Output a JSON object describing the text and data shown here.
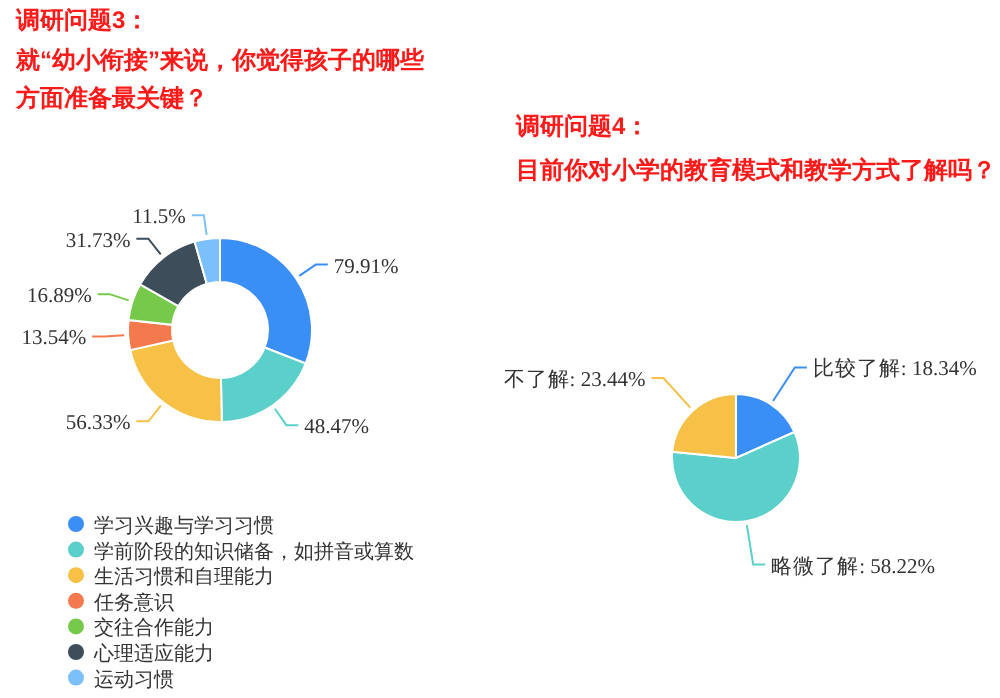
{
  "chart_data": [
    {
      "type": "donut",
      "title": "调研问题3：",
      "subtitle": "就“幼小衔接”来说，你觉得孩子的哪些方面准备最关键？",
      "categories": [
        "学习兴趣与学习习惯",
        "学前阶段的知识储备，如拼音或算数",
        "生活习惯和自理能力",
        "任务意识",
        "交往合作能力",
        "心理适应能力",
        "运动习惯"
      ],
      "values": [
        79.91,
        48.47,
        56.33,
        13.54,
        16.89,
        31.73,
        11.5
      ],
      "value_labels": [
        "79.91%",
        "48.47%",
        "56.33%",
        "13.54%",
        "16.89%",
        "31.73%",
        "11.5%"
      ],
      "colors": [
        "#3a8ff7",
        "#5bcfc9",
        "#f6c146",
        "#f47a4e",
        "#76c94a",
        "#3d4d5a",
        "#7cc0fb"
      ],
      "legend": "bottom"
    },
    {
      "type": "pie",
      "title": "调研问题4：",
      "subtitle": "目前你对小学的教育模式和教学方式了解吗？",
      "categories": [
        "比较了解",
        "略微了解",
        "不了解"
      ],
      "values": [
        18.34,
        58.22,
        23.44
      ],
      "value_labels": [
        "18.34%",
        "58.22%",
        "23.44%"
      ],
      "colors": [
        "#3a8ff7",
        "#5bcfc9",
        "#f6c146"
      ]
    }
  ]
}
